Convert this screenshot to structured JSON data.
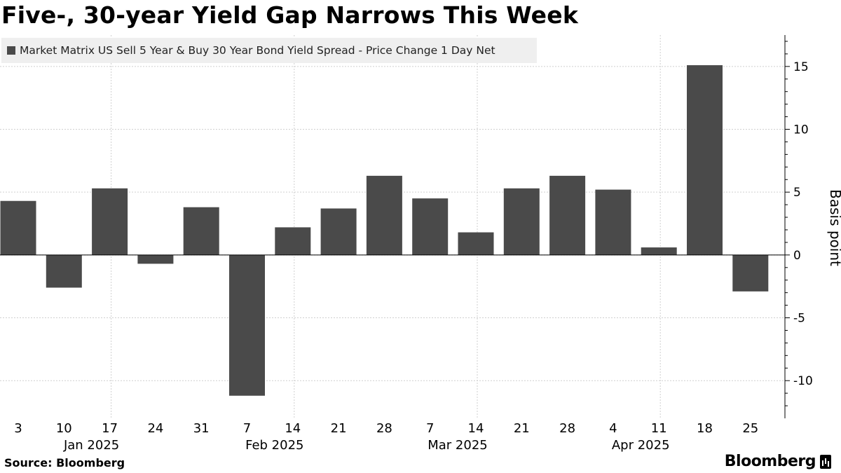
{
  "title": "Five-, 30-year Yield Gap Narrows This Week",
  "source": "Source: Bloomberg",
  "brand": "Bloomberg",
  "colors": {
    "bar": "#4a4a4a",
    "grid": "#cfcfcf",
    "legend_bg": "#efefef"
  },
  "chart_data": {
    "type": "bar",
    "title": "Five-, 30-year Yield Gap Narrows This Week",
    "ylabel": "Basis point",
    "ylim": [
      -13,
      17.5
    ],
    "yticks": [
      15,
      10,
      5,
      0,
      -5,
      -10
    ],
    "grid": true,
    "legend_placement": "top-left",
    "series": [
      {
        "name": "Market Matrix US Sell 5 Year & Buy 30 Year Bond Yield Spread - Price Change 1 Day Net",
        "values": [
          4.3,
          -2.6,
          5.3,
          -0.7,
          3.8,
          -11.2,
          2.2,
          3.7,
          6.3,
          4.5,
          1.8,
          5.3,
          6.3,
          5.2,
          0.6,
          15.1,
          -2.9
        ]
      }
    ],
    "categories": [
      "3",
      "10",
      "17",
      "24",
      "31",
      "7",
      "14",
      "21",
      "28",
      "7",
      "14",
      "21",
      "28",
      "4",
      "11",
      "18",
      "25"
    ],
    "month_labels": [
      {
        "label": "Jan 2025",
        "center_index": 2
      },
      {
        "label": "Feb 2025",
        "center_index": 6
      },
      {
        "label": "Mar 2025",
        "center_index": 10
      },
      {
        "label": "Apr 2025",
        "center_index": 14
      }
    ]
  }
}
